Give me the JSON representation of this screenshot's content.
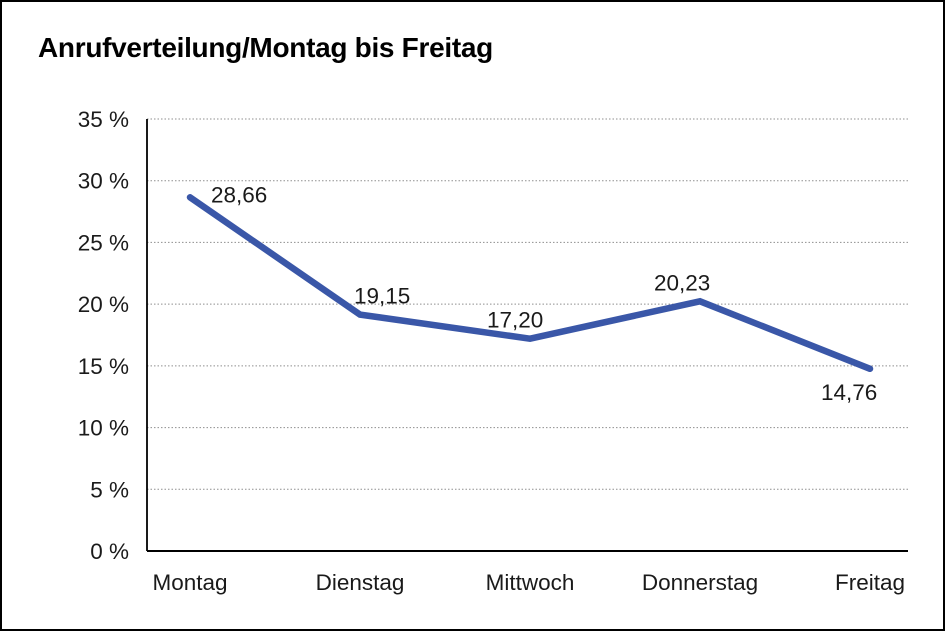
{
  "page": {
    "title": "Anrufverteilung/Montag bis Freitag"
  },
  "chart_data": {
    "type": "line",
    "title": "Anrufverteilung/Montag bis Freitag",
    "categories": [
      "Montag",
      "Dienstag",
      "Mittwoch",
      "Donnerstag",
      "Freitag"
    ],
    "values": [
      28.66,
      19.15,
      17.2,
      20.23,
      14.76
    ],
    "value_labels": [
      "28,66",
      "19,15",
      "17,20",
      "20,23",
      "14,76"
    ],
    "value_label_positions": [
      "right-of-point",
      "above-point",
      "above-point",
      "above-point",
      "below-point"
    ],
    "xlabel": "",
    "ylabel": "",
    "y_unit": "%",
    "ylim": [
      0,
      35
    ],
    "y_tick_step": 5,
    "y_tick_labels": [
      "35 %",
      "30 %",
      "25 %",
      "20 %",
      "15 %",
      "10 %",
      "5 %",
      "0 %"
    ],
    "grid": "horizontal-dotted",
    "legend": "none"
  },
  "colors": {
    "line": "#3a57a8",
    "grid": "#8f8f8f",
    "axis": "#000000",
    "text": "#1a1a1a",
    "background": "#ffffff",
    "frame_border": "#000000"
  }
}
